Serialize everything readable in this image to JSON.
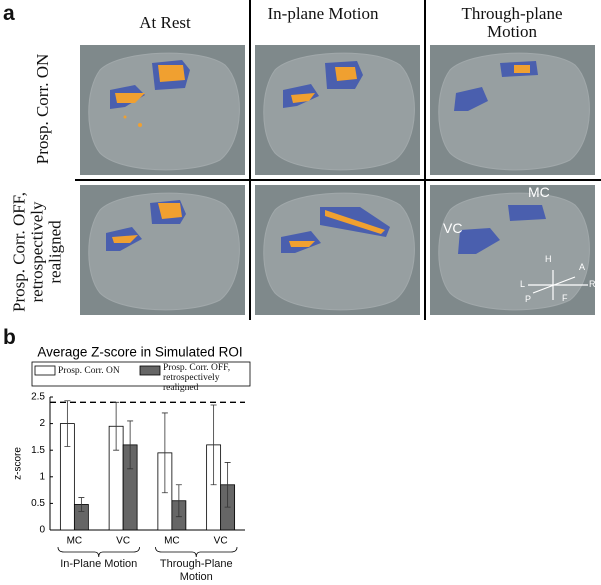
{
  "panel_a": {
    "label": "a",
    "column_headers": [
      "At Rest",
      "In-plane Motion",
      "Through-plane Motion"
    ],
    "row_labels": [
      "Prosp. Corr. ON",
      "Prosp. Corr. OFF, retrospectively realigned"
    ],
    "annotations": {
      "mc": "MC",
      "vc": "VC"
    },
    "orientation": {
      "h": "H",
      "a": "A",
      "r": "R",
      "l": "L",
      "p": "P",
      "f": "F"
    }
  },
  "panel_b": {
    "label": "b"
  },
  "chart_data": {
    "type": "bar",
    "title": "Average Z-score in Simulated ROI",
    "y_label": "z-score",
    "categories": [
      "MC",
      "VC",
      "MC",
      "VC"
    ],
    "group_labels": [
      "In-Plane Motion",
      "Through-Plane Motion"
    ],
    "series": [
      {
        "name": "Prosp. Corr. ON",
        "color": "#ffffff",
        "values": [
          2.0,
          1.95,
          1.45,
          1.6
        ],
        "errors": [
          0.43,
          0.45,
          0.75,
          0.75
        ]
      },
      {
        "name": "Prosp. Corr. OFF, retrospectively realigned",
        "color": "#666666",
        "values": [
          0.48,
          1.6,
          0.55,
          0.85
        ],
        "errors": [
          0.13,
          0.45,
          0.3,
          0.42
        ]
      }
    ],
    "reference_line": 2.4,
    "ylim": [
      0,
      2.5
    ],
    "yticks": [
      0,
      0.5,
      1,
      1.5,
      2,
      2.5
    ]
  }
}
